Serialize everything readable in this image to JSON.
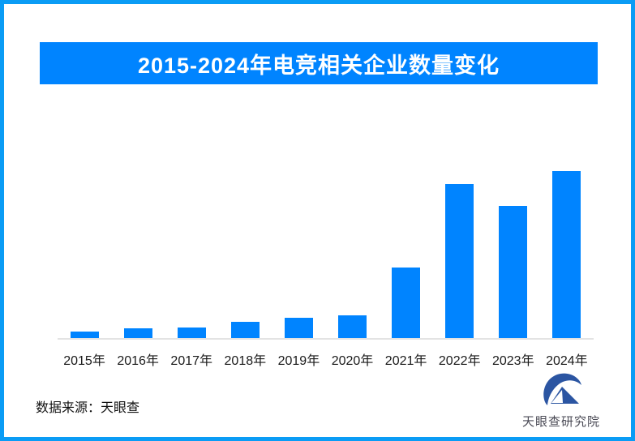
{
  "frame": {
    "border_color": "#0a9cf5",
    "background": "#ffffff"
  },
  "title": {
    "text": "2015-2024年电竞相关企业数量变化",
    "bg": "#0084ff",
    "color": "#ffffff"
  },
  "chart_data": {
    "type": "bar",
    "title": "2015-2024年电竞相关企业数量变化",
    "categories": [
      "2015年",
      "2016年",
      "2017年",
      "2018年",
      "2019年",
      "2020年",
      "2021年",
      "2022年",
      "2023年",
      "2024年"
    ],
    "values": [
      4,
      6,
      6.5,
      9.5,
      12,
      13.5,
      42,
      92,
      79,
      100
    ],
    "value_axis": "unlabeled — values are relative bar heights as % of tallest bar (2024)",
    "xlabel": "",
    "ylabel": "",
    "grid": false,
    "legend": false,
    "bar_color": "#0084ff",
    "axis_line_color": "#e3e3e3"
  },
  "footer": {
    "source_label": "数据来源：天眼查"
  },
  "logo": {
    "icon": "tianyancha-eye-icon",
    "text": "天眼查研究院",
    "icon_color": "#2b55a2",
    "text_color": "#4a4a55"
  }
}
